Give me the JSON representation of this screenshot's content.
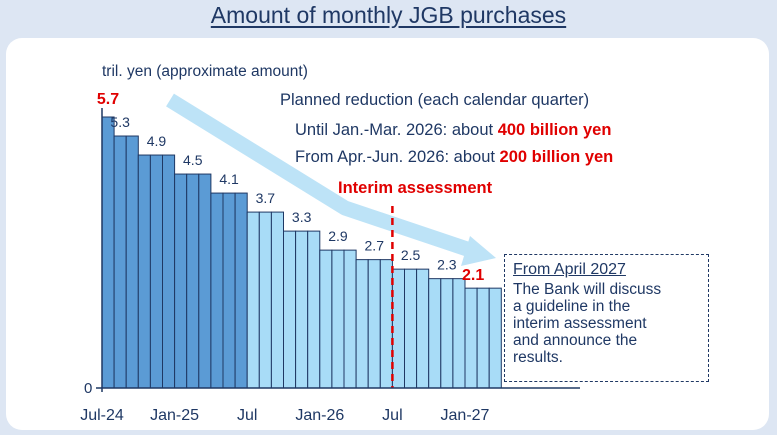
{
  "title": "Amount of monthly JGB purchases",
  "chart_data": {
    "type": "bar",
    "title": "Amount of monthly JGB purchases",
    "ylabel": "tril. yen (approximate amount)",
    "xlabel": "",
    "ylim": [
      0,
      6
    ],
    "x_ticks": [
      "Jul-24",
      "Jan-25",
      "Jul",
      "Jan-26",
      "Jul",
      "Jan-27"
    ],
    "y_ticks": [
      "0"
    ],
    "categories": [
      "Jul-24",
      "Aug-24",
      "Sep-24",
      "Oct-24",
      "Nov-24",
      "Dec-24",
      "Jan-25",
      "Feb-25",
      "Mar-25",
      "Apr-25",
      "May-25",
      "Jun-25",
      "Jul-25",
      "Aug-25",
      "Sep-25",
      "Oct-25",
      "Nov-25",
      "Dec-25",
      "Jan-26",
      "Feb-26",
      "Mar-26",
      "Apr-26",
      "May-26",
      "Jun-26",
      "Jul-26",
      "Aug-26",
      "Sep-26",
      "Oct-26",
      "Nov-26",
      "Dec-26",
      "Jan-27",
      "Feb-27",
      "Mar-27"
    ],
    "values": [
      5.7,
      5.3,
      5.3,
      4.9,
      4.9,
      4.9,
      4.5,
      4.5,
      4.5,
      4.1,
      4.1,
      4.1,
      3.7,
      3.7,
      3.7,
      3.3,
      3.3,
      3.3,
      2.9,
      2.9,
      2.9,
      2.7,
      2.7,
      2.7,
      2.5,
      2.5,
      2.5,
      2.3,
      2.3,
      2.3,
      2.1,
      2.1,
      2.1
    ],
    "data_labels": [
      {
        "text": "5.7",
        "value": 5.7,
        "index": 0,
        "highlight": true
      },
      {
        "text": "5.3",
        "value": 5.3,
        "index": 1
      },
      {
        "text": "4.9",
        "value": 4.9,
        "index": 4
      },
      {
        "text": "4.5",
        "value": 4.5,
        "index": 7
      },
      {
        "text": "4.1",
        "value": 4.1,
        "index": 10
      },
      {
        "text": "3.7",
        "value": 3.7,
        "index": 13
      },
      {
        "text": "3.3",
        "value": 3.3,
        "index": 16
      },
      {
        "text": "2.9",
        "value": 2.9,
        "index": 19
      },
      {
        "text": "2.7",
        "value": 2.7,
        "index": 22
      },
      {
        "text": "2.5",
        "value": 2.5,
        "index": 25
      },
      {
        "text": "2.3",
        "value": 2.3,
        "index": 28
      },
      {
        "text": "2.1",
        "value": 2.1,
        "index": 31,
        "highlight": true
      }
    ],
    "dark_bar_count": 12,
    "interim_after_index": 23,
    "colors": {
      "bar_dark": "#5b9bd5",
      "bar_light": "#a8dcf7",
      "bar_edge": "#1f3864",
      "highlight": "#e00000",
      "text": "#1f3864",
      "arrow": "#bde3f7"
    },
    "grid": false,
    "legend": "none"
  },
  "annotations": {
    "planned_title": "Planned reduction (each calendar quarter)",
    "line1_prefix": "Until Jan.-Mar. 2026: about ",
    "line1_bold": "400 billion yen",
    "line2_prefix": "From Apr.-Jun. 2026: about ",
    "line2_bold": "200 billion yen",
    "interim": "Interim assessment"
  },
  "note": {
    "heading": "From April 2027",
    "body": [
      "The Bank will discuss",
      "a guideline in the",
      "interim assessment",
      "and announce the",
      "results."
    ]
  }
}
